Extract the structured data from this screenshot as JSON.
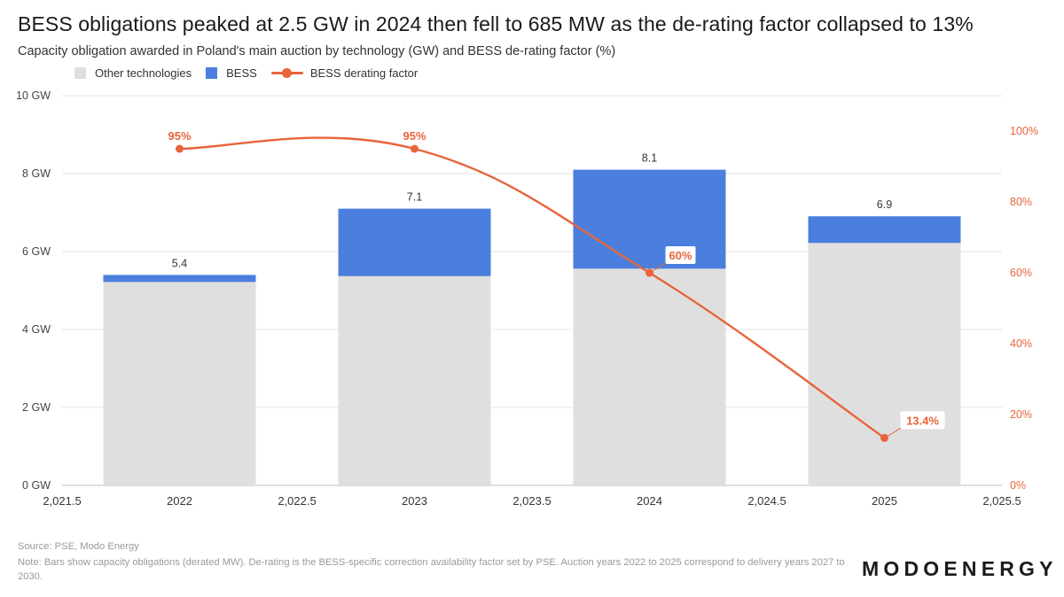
{
  "title": "BESS obligations peaked at 2.5 GW in 2024 then fell to 685 MW as the de-rating factor collapsed to 13%",
  "subtitle": "Capacity obligation awarded in Poland's main auction by technology (GW) and BESS de-rating factor (%)",
  "legend": [
    {
      "label": "Other technologies",
      "color": "#dfdfdf",
      "kind": "bar"
    },
    {
      "label": "BESS",
      "color": "#4a7fdd",
      "kind": "bar"
    },
    {
      "label": "BESS derating factor",
      "color": "#e8643a",
      "kind": "line"
    }
  ],
  "colors": {
    "other": "#dfdfdf",
    "bess": "#4a7fdd",
    "derating": "#e8643a",
    "grid": "#e6e6e6",
    "axis_text": "#444444"
  },
  "chart_data": {
    "type": "bar",
    "stacked": true,
    "categories": [
      "2022",
      "2023",
      "2024",
      "2025"
    ],
    "x": [
      2022,
      2023,
      2024,
      2025
    ],
    "xlim": [
      2021.5,
      2025.5
    ],
    "x_tick_labels": [
      "2,021.5",
      "2022",
      "2,022.5",
      "2023",
      "2,023.5",
      "2024",
      "2,024.5",
      "2025",
      "2,025.5"
    ],
    "x_ticks": [
      2021.5,
      2022,
      2022.5,
      2023,
      2023.5,
      2024,
      2024.5,
      2025,
      2025.5
    ],
    "series": [
      {
        "name": "Other technologies",
        "axis": "left",
        "values": [
          5.22,
          5.37,
          5.56,
          6.22
        ]
      },
      {
        "name": "BESS",
        "axis": "left",
        "values": [
          0.18,
          1.73,
          2.54,
          0.685
        ]
      },
      {
        "name": "BESS derating factor",
        "type": "line",
        "axis": "right",
        "values": [
          95,
          95,
          60,
          13.4
        ]
      }
    ],
    "totals": [
      5.4,
      7.1,
      8.1,
      6.9
    ],
    "total_labels": [
      "5.4",
      "7.1",
      "8.1",
      "6.9"
    ],
    "derating_labels": [
      "95%",
      "95%",
      "60%",
      "13.4%"
    ],
    "ylim": [
      0,
      10
    ],
    "y_tick_labels": [
      "0 GW",
      "2 GW",
      "4 GW",
      "6 GW",
      "8 GW",
      "10 GW"
    ],
    "y_ticks": [
      0,
      2,
      4,
      6,
      8,
      10
    ],
    "y2lim": [
      0,
      100
    ],
    "y2_tick_labels": [
      "0%",
      "20%",
      "40%",
      "60%",
      "80%",
      "100%"
    ],
    "y2_ticks": [
      0,
      20,
      40,
      60,
      80,
      100
    ],
    "grid": true,
    "legend_position": "top-left"
  },
  "footer": {
    "source": "Source: PSE, Modo Energy",
    "note": "Note: Bars show capacity obligations (derated MW). De-rating is the BESS-specific correction availability factor set by PSE. Auction years 2022 to 2025 correspond to delivery years 2027 to 2030."
  },
  "brand": "MODOENERGY"
}
